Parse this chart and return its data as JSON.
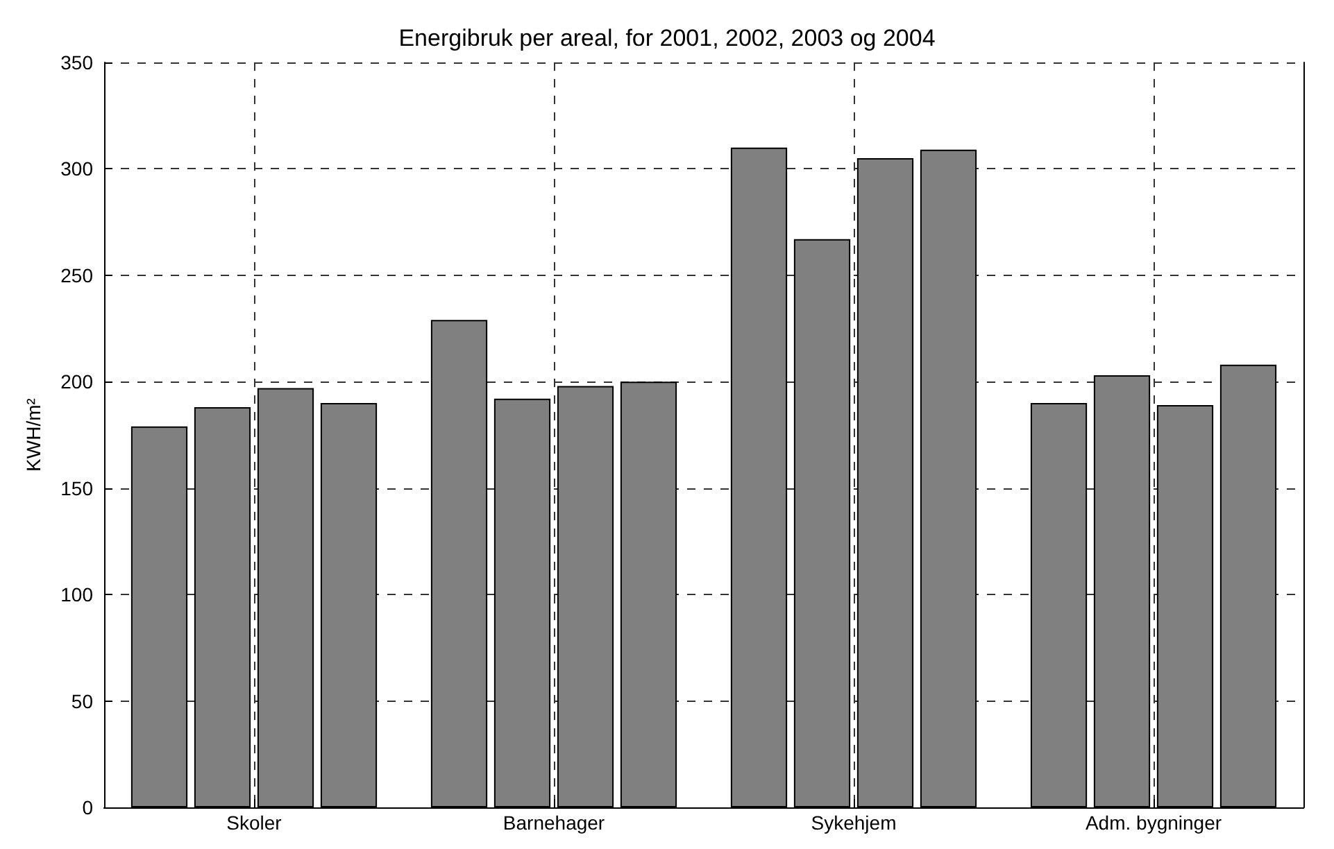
{
  "chart_data": {
    "type": "bar",
    "title": "Energibruk per areal, for 2001, 2002, 2003 og 2004",
    "ylabel": "KWH/m²",
    "categories": [
      "Skoler",
      "Barnehager",
      "Sykehjem",
      "Adm. bygninger"
    ],
    "series": [
      {
        "color": "#808080",
        "values": [
          179,
          229,
          310,
          190
        ]
      },
      {
        "color": "#808080",
        "values": [
          188,
          192,
          267,
          203
        ]
      },
      {
        "color": "#808080",
        "values": [
          197,
          198,
          305,
          189
        ]
      },
      {
        "color": "#808080",
        "values": [
          190,
          200,
          309,
          208
        ]
      }
    ],
    "ylim": [
      0,
      350
    ],
    "yticks": [
      0,
      50,
      100,
      150,
      200,
      250,
      300,
      350
    ],
    "grid": true
  }
}
